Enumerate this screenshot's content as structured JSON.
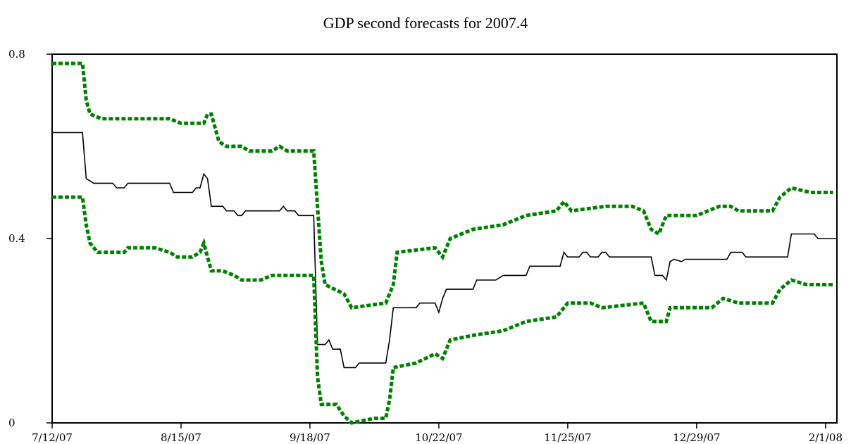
{
  "chart_data": {
    "type": "line",
    "title": "GDP second forecasts for 2007.4",
    "xlabel": "",
    "ylabel": "",
    "x_ticks": [
      "7/12/07",
      "8/15/07",
      "9/18/07",
      "10/22/07",
      "11/25/07",
      "12/29/07",
      "2/1/08"
    ],
    "y_ticks": [
      "0",
      "0.4",
      "0.8"
    ],
    "ylim": [
      0,
      0.8
    ],
    "grid": false,
    "legend": "none",
    "series": [
      {
        "key": "upper",
        "color": "#008000",
        "style": "dotted",
        "points": [
          [
            "2007-07-12",
            0.78
          ],
          [
            "2007-07-20",
            0.78
          ],
          [
            "2007-07-21",
            0.7
          ],
          [
            "2007-07-22",
            0.67
          ],
          [
            "2007-07-25",
            0.66
          ],
          [
            "2007-08-12",
            0.66
          ],
          [
            "2007-08-15",
            0.65
          ],
          [
            "2007-08-21",
            0.65
          ],
          [
            "2007-08-22",
            0.67
          ],
          [
            "2007-08-23",
            0.67
          ],
          [
            "2007-08-25",
            0.61
          ],
          [
            "2007-08-27",
            0.6
          ],
          [
            "2007-08-31",
            0.6
          ],
          [
            "2007-09-02",
            0.59
          ],
          [
            "2007-09-08",
            0.59
          ],
          [
            "2007-09-10",
            0.6
          ],
          [
            "2007-09-12",
            0.59
          ],
          [
            "2007-09-19",
            0.59
          ],
          [
            "2007-09-21",
            0.35
          ],
          [
            "2007-09-22",
            0.3
          ],
          [
            "2007-09-27",
            0.28
          ],
          [
            "2007-09-29",
            0.25
          ],
          [
            "2007-10-08",
            0.26
          ],
          [
            "2007-10-10",
            0.3
          ],
          [
            "2007-10-11",
            0.37
          ],
          [
            "2007-10-21",
            0.38
          ],
          [
            "2007-10-23",
            0.36
          ],
          [
            "2007-10-25",
            0.4
          ],
          [
            "2007-10-31",
            0.42
          ],
          [
            "2007-11-08",
            0.43
          ],
          [
            "2007-11-14",
            0.45
          ],
          [
            "2007-11-22",
            0.46
          ],
          [
            "2007-11-24",
            0.48
          ],
          [
            "2007-11-26",
            0.46
          ],
          [
            "2007-12-05",
            0.47
          ],
          [
            "2007-12-12",
            0.47
          ],
          [
            "2007-12-15",
            0.46
          ],
          [
            "2007-12-17",
            0.42
          ],
          [
            "2007-12-19",
            0.41
          ],
          [
            "2007-12-21",
            0.45
          ],
          [
            "2007-12-29",
            0.45
          ],
          [
            "2008-01-04",
            0.47
          ],
          [
            "2008-01-07",
            0.47
          ],
          [
            "2008-01-09",
            0.46
          ],
          [
            "2008-01-18",
            0.46
          ],
          [
            "2008-01-20",
            0.49
          ],
          [
            "2008-01-23",
            0.51
          ],
          [
            "2008-01-28",
            0.5
          ],
          [
            "2008-02-03",
            0.5
          ]
        ]
      },
      {
        "key": "forecast",
        "color": "#000000",
        "style": "solid",
        "points": [
          [
            "2007-07-12",
            0.63
          ],
          [
            "2007-07-20",
            0.63
          ],
          [
            "2007-07-21",
            0.53
          ],
          [
            "2007-07-23",
            0.52
          ],
          [
            "2007-07-28",
            0.52
          ],
          [
            "2007-07-29",
            0.51
          ],
          [
            "2007-07-31",
            0.51
          ],
          [
            "2007-08-01",
            0.52
          ],
          [
            "2007-08-12",
            0.52
          ],
          [
            "2007-08-13",
            0.5
          ],
          [
            "2007-08-18",
            0.5
          ],
          [
            "2007-08-19",
            0.51
          ],
          [
            "2007-08-20",
            0.51
          ],
          [
            "2007-08-21",
            0.54
          ],
          [
            "2007-08-22",
            0.53
          ],
          [
            "2007-08-23",
            0.47
          ],
          [
            "2007-08-26",
            0.47
          ],
          [
            "2007-08-27",
            0.46
          ],
          [
            "2007-08-29",
            0.46
          ],
          [
            "2007-08-30",
            0.45
          ],
          [
            "2007-08-31",
            0.45
          ],
          [
            "2007-09-01",
            0.46
          ],
          [
            "2007-09-10",
            0.46
          ],
          [
            "2007-09-11",
            0.47
          ],
          [
            "2007-09-12",
            0.46
          ],
          [
            "2007-09-14",
            0.46
          ],
          [
            "2007-09-15",
            0.45
          ],
          [
            "2007-09-19",
            0.45
          ],
          [
            "2007-09-20",
            0.17
          ],
          [
            "2007-09-22",
            0.17
          ],
          [
            "2007-09-23",
            0.18
          ],
          [
            "2007-09-24",
            0.16
          ],
          [
            "2007-09-26",
            0.16
          ],
          [
            "2007-09-27",
            0.12
          ],
          [
            "2007-09-30",
            0.12
          ],
          [
            "2007-10-01",
            0.13
          ],
          [
            "2007-10-08",
            0.13
          ],
          [
            "2007-10-09",
            0.18
          ],
          [
            "2007-10-10",
            0.25
          ],
          [
            "2007-10-16",
            0.25
          ],
          [
            "2007-10-17",
            0.26
          ],
          [
            "2007-10-21",
            0.26
          ],
          [
            "2007-10-22",
            0.24
          ],
          [
            "2007-10-23",
            0.27
          ],
          [
            "2007-10-24",
            0.29
          ],
          [
            "2007-10-31",
            0.29
          ],
          [
            "2007-11-01",
            0.31
          ],
          [
            "2007-11-06",
            0.31
          ],
          [
            "2007-11-08",
            0.32
          ],
          [
            "2007-11-14",
            0.32
          ],
          [
            "2007-11-15",
            0.34
          ],
          [
            "2007-11-23",
            0.34
          ],
          [
            "2007-11-24",
            0.37
          ],
          [
            "2007-11-25",
            0.36
          ],
          [
            "2007-11-28",
            0.36
          ],
          [
            "2007-11-29",
            0.37
          ],
          [
            "2007-11-30",
            0.37
          ],
          [
            "2007-12-01",
            0.36
          ],
          [
            "2007-12-03",
            0.36
          ],
          [
            "2007-12-04",
            0.37
          ],
          [
            "2007-12-05",
            0.37
          ],
          [
            "2007-12-06",
            0.36
          ],
          [
            "2007-12-17",
            0.36
          ],
          [
            "2007-12-18",
            0.32
          ],
          [
            "2007-12-20",
            0.32
          ],
          [
            "2007-12-21",
            0.31
          ],
          [
            "2007-12-22",
            0.35
          ],
          [
            "2007-12-23",
            0.355
          ],
          [
            "2007-12-25",
            0.35
          ],
          [
            "2007-12-26",
            0.355
          ],
          [
            "2008-01-06",
            0.355
          ],
          [
            "2008-01-07",
            0.37
          ],
          [
            "2008-01-08",
            0.37
          ],
          [
            "2008-01-10",
            0.37
          ],
          [
            "2008-01-11",
            0.36
          ],
          [
            "2008-01-22",
            0.36
          ],
          [
            "2008-01-23",
            0.41
          ],
          [
            "2008-01-29",
            0.41
          ],
          [
            "2008-01-30",
            0.4
          ],
          [
            "2008-02-04",
            0.4
          ]
        ]
      },
      {
        "key": "lower",
        "color": "#008000",
        "style": "dotted",
        "points": [
          [
            "2007-07-12",
            0.49
          ],
          [
            "2007-07-20",
            0.49
          ],
          [
            "2007-07-21",
            0.43
          ],
          [
            "2007-07-22",
            0.39
          ],
          [
            "2007-07-24",
            0.37
          ],
          [
            "2007-07-31",
            0.37
          ],
          [
            "2007-08-01",
            0.38
          ],
          [
            "2007-08-08",
            0.38
          ],
          [
            "2007-08-12",
            0.37
          ],
          [
            "2007-08-14",
            0.36
          ],
          [
            "2007-08-18",
            0.36
          ],
          [
            "2007-08-20",
            0.37
          ],
          [
            "2007-08-21",
            0.39
          ],
          [
            "2007-08-22",
            0.36
          ],
          [
            "2007-08-23",
            0.33
          ],
          [
            "2007-08-26",
            0.33
          ],
          [
            "2007-08-29",
            0.32
          ],
          [
            "2007-08-31",
            0.31
          ],
          [
            "2007-09-05",
            0.31
          ],
          [
            "2007-09-08",
            0.32
          ],
          [
            "2007-09-10",
            0.32
          ],
          [
            "2007-09-12",
            0.32
          ],
          [
            "2007-09-19",
            0.32
          ],
          [
            "2007-09-20",
            0.1
          ],
          [
            "2007-09-21",
            0.04
          ],
          [
            "2007-09-25",
            0.04
          ],
          [
            "2007-09-27",
            0.015
          ],
          [
            "2007-09-29",
            0.0
          ],
          [
            "2007-10-05",
            0.01
          ],
          [
            "2007-10-08",
            0.01
          ],
          [
            "2007-10-09",
            0.05
          ],
          [
            "2007-10-10",
            0.12
          ],
          [
            "2007-10-16",
            0.13
          ],
          [
            "2007-10-21",
            0.15
          ],
          [
            "2007-10-23",
            0.14
          ],
          [
            "2007-10-25",
            0.18
          ],
          [
            "2007-10-31",
            0.19
          ],
          [
            "2007-11-08",
            0.2
          ],
          [
            "2007-11-14",
            0.22
          ],
          [
            "2007-11-22",
            0.23
          ],
          [
            "2007-11-25",
            0.26
          ],
          [
            "2007-12-01",
            0.26
          ],
          [
            "2007-12-04",
            0.25
          ],
          [
            "2007-12-15",
            0.26
          ],
          [
            "2007-12-17",
            0.22
          ],
          [
            "2007-12-21",
            0.22
          ],
          [
            "2007-12-22",
            0.25
          ],
          [
            "2008-01-02",
            0.25
          ],
          [
            "2008-01-05",
            0.27
          ],
          [
            "2008-01-09",
            0.26
          ],
          [
            "2008-01-18",
            0.26
          ],
          [
            "2008-01-20",
            0.29
          ],
          [
            "2008-01-23",
            0.31
          ],
          [
            "2008-01-27",
            0.3
          ],
          [
            "2008-02-03",
            0.3
          ]
        ]
      }
    ]
  }
}
